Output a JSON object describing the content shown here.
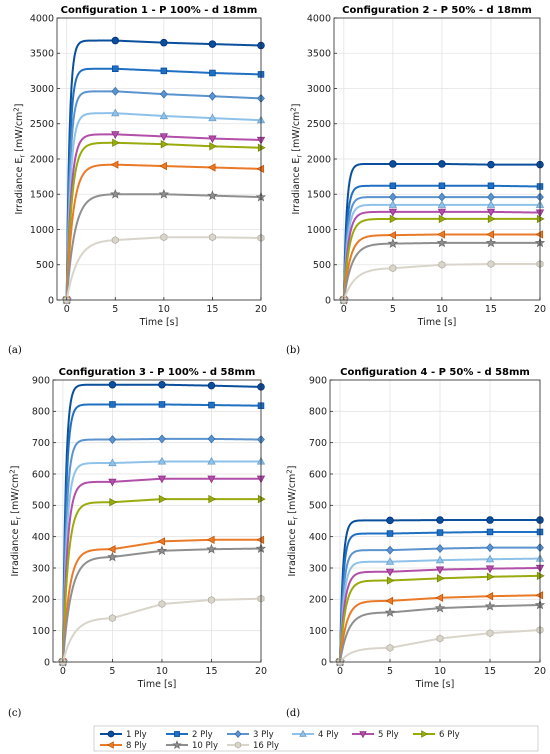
{
  "legend_entries": [
    {
      "label": "1 Ply",
      "color": "#0a4f9c",
      "marker": "circle"
    },
    {
      "label": "2 Ply",
      "color": "#1f6fc2",
      "marker": "square"
    },
    {
      "label": "3 Ply",
      "color": "#5b93cf",
      "marker": "diamond"
    },
    {
      "label": "4 Ply",
      "color": "#8fc2ea",
      "marker": "triangle-up"
    },
    {
      "label": "5 Ply",
      "color": "#b24fa8",
      "marker": "triangle-down"
    },
    {
      "label": "6 Ply",
      "color": "#9aab0e",
      "marker": "triangle-right"
    },
    {
      "label": "8 Ply",
      "color": "#ea7a28",
      "marker": "triangle-left"
    },
    {
      "label": "10 Ply",
      "color": "#8f8f8f",
      "marker": "star"
    },
    {
      "label": "16 Ply",
      "color": "#d9d5ca",
      "marker": "hexagon"
    }
  ],
  "chart_data": [
    {
      "type": "line",
      "panel_label": "(a)",
      "title": "Configuration 1 - P 100% - d 18mm",
      "xlabel": "Time [s]",
      "ylabel": "Irradiance E",
      "ylabel_sub": "r",
      "ylabel_unit": "[mW/cm",
      "ylabel_sup": "2",
      "ylabel_close": "]",
      "xlim": [
        -1,
        20
      ],
      "ylim": [
        0,
        4000
      ],
      "xticks": [
        "0",
        "5",
        "10",
        "15",
        "20"
      ],
      "yticks": [
        "0",
        "500",
        "1000",
        "1500",
        "2000",
        "2500",
        "3000",
        "3500",
        "4000"
      ],
      "grid": true,
      "x": [
        0,
        5,
        10,
        15,
        20
      ],
      "series": [
        {
          "name": "1 Ply",
          "values": [
            0,
            3680,
            3650,
            3630,
            3610
          ]
        },
        {
          "name": "2 Ply",
          "values": [
            0,
            3280,
            3250,
            3220,
            3200
          ]
        },
        {
          "name": "3 Ply",
          "values": [
            0,
            2960,
            2920,
            2890,
            2860
          ]
        },
        {
          "name": "4 Ply",
          "values": [
            0,
            2650,
            2610,
            2580,
            2550
          ]
        },
        {
          "name": "5 Ply",
          "values": [
            0,
            2350,
            2320,
            2290,
            2270
          ]
        },
        {
          "name": "6 Ply",
          "values": [
            0,
            2230,
            2210,
            2180,
            2160
          ]
        },
        {
          "name": "8 Ply",
          "values": [
            0,
            1920,
            1900,
            1880,
            1860
          ]
        },
        {
          "name": "10 Ply",
          "values": [
            0,
            1500,
            1500,
            1480,
            1460
          ]
        },
        {
          "name": "16 Ply",
          "values": [
            0,
            850,
            890,
            890,
            880
          ]
        }
      ]
    },
    {
      "type": "line",
      "panel_label": "(b)",
      "title": "Configuration 2 - P 50% - d 18mm",
      "xlabel": "Time [s]",
      "ylabel": "Irradiance E",
      "ylabel_sub": "r",
      "ylabel_unit": "[mW/cm",
      "ylabel_sup": "2",
      "ylabel_close": "]",
      "xlim": [
        -1,
        20
      ],
      "ylim": [
        0,
        4000
      ],
      "xticks": [
        "0",
        "5",
        "10",
        "15",
        "20"
      ],
      "yticks": [
        "0",
        "500",
        "1000",
        "1500",
        "2000",
        "2500",
        "3000",
        "3500",
        "4000"
      ],
      "grid": true,
      "x": [
        0,
        5,
        10,
        15,
        20
      ],
      "series": [
        {
          "name": "1 Ply",
          "values": [
            0,
            1930,
            1930,
            1920,
            1920
          ]
        },
        {
          "name": "2 Ply",
          "values": [
            0,
            1620,
            1620,
            1620,
            1610
          ]
        },
        {
          "name": "3 Ply",
          "values": [
            0,
            1460,
            1460,
            1460,
            1460
          ]
        },
        {
          "name": "4 Ply",
          "values": [
            0,
            1350,
            1350,
            1350,
            1350
          ]
        },
        {
          "name": "5 Ply",
          "values": [
            0,
            1250,
            1250,
            1250,
            1240
          ]
        },
        {
          "name": "6 Ply",
          "values": [
            0,
            1150,
            1150,
            1150,
            1150
          ]
        },
        {
          "name": "8 Ply",
          "values": [
            0,
            920,
            930,
            930,
            930
          ]
        },
        {
          "name": "10 Ply",
          "values": [
            0,
            800,
            810,
            810,
            810
          ]
        },
        {
          "name": "16 Ply",
          "values": [
            0,
            450,
            500,
            510,
            510
          ]
        }
      ]
    },
    {
      "type": "line",
      "panel_label": "(c)",
      "title": "Configuration 3 - P 100% - d 58mm",
      "xlabel": "Time [s]",
      "ylabel": "Irradiance E",
      "ylabel_sub": "r",
      "ylabel_unit": "[mW/cm",
      "ylabel_sup": "2",
      "ylabel_close": "]",
      "xlim": [
        -1,
        20
      ],
      "ylim": [
        0,
        900
      ],
      "xticks": [
        "0",
        "5",
        "10",
        "15",
        "20"
      ],
      "yticks": [
        "0",
        "100",
        "200",
        "300",
        "400",
        "500",
        "600",
        "700",
        "800",
        "900"
      ],
      "grid": true,
      "x": [
        0,
        5,
        10,
        15,
        20
      ],
      "series": [
        {
          "name": "1 Ply",
          "values": [
            0,
            885,
            885,
            882,
            878
          ]
        },
        {
          "name": "2 Ply",
          "values": [
            0,
            822,
            822,
            820,
            818
          ]
        },
        {
          "name": "3 Ply",
          "values": [
            0,
            710,
            712,
            712,
            710
          ]
        },
        {
          "name": "4 Ply",
          "values": [
            0,
            635,
            640,
            640,
            640
          ]
        },
        {
          "name": "5 Ply",
          "values": [
            0,
            575,
            585,
            585,
            585
          ]
        },
        {
          "name": "6 Ply",
          "values": [
            0,
            510,
            520,
            520,
            520
          ]
        },
        {
          "name": "8 Ply",
          "values": [
            0,
            360,
            385,
            390,
            390
          ]
        },
        {
          "name": "10 Ply",
          "values": [
            0,
            335,
            355,
            360,
            362
          ]
        },
        {
          "name": "16 Ply",
          "values": [
            0,
            140,
            185,
            198,
            202
          ]
        }
      ]
    },
    {
      "type": "line",
      "panel_label": "(d)",
      "title": "Configuration 4 - P 50% - d 58mm",
      "xlabel": "Time [s]",
      "ylabel": "Irradiance E",
      "ylabel_sub": "r",
      "ylabel_unit": "[mW/cm",
      "ylabel_sup": "2",
      "ylabel_close": "]",
      "xlim": [
        -1,
        20
      ],
      "ylim": [
        0,
        900
      ],
      "xticks": [
        "0",
        "5",
        "10",
        "15",
        "20"
      ],
      "yticks": [
        "0",
        "100",
        "200",
        "300",
        "400",
        "500",
        "600",
        "700",
        "800",
        "900"
      ],
      "grid": true,
      "x": [
        0,
        5,
        10,
        15,
        20
      ],
      "series": [
        {
          "name": "1 Ply",
          "values": [
            0,
            452,
            453,
            453,
            453
          ]
        },
        {
          "name": "2 Ply",
          "values": [
            0,
            410,
            413,
            415,
            415
          ]
        },
        {
          "name": "3 Ply",
          "values": [
            0,
            357,
            362,
            365,
            365
          ]
        },
        {
          "name": "4 Ply",
          "values": [
            0,
            320,
            325,
            328,
            330
          ]
        },
        {
          "name": "5 Ply",
          "values": [
            0,
            288,
            295,
            298,
            300
          ]
        },
        {
          "name": "6 Ply",
          "values": [
            0,
            260,
            267,
            272,
            275
          ]
        },
        {
          "name": "8 Ply",
          "values": [
            0,
            195,
            205,
            210,
            213
          ]
        },
        {
          "name": "10 Ply",
          "values": [
            0,
            158,
            172,
            178,
            182
          ]
        },
        {
          "name": "16 Ply",
          "values": [
            0,
            45,
            75,
            92,
            102
          ]
        }
      ]
    }
  ]
}
